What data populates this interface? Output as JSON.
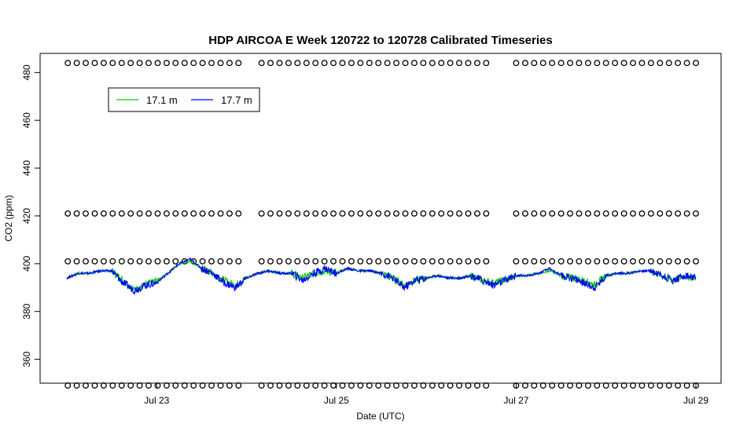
{
  "chart_data": {
    "type": "line",
    "title": "HDP AIRCOA E  Week 120722 to 120728  Calibrated Timeseries",
    "xlabel": "Date (UTC)",
    "ylabel": "CO2 (ppm)",
    "x_ticks": [
      "Jul 23",
      "Jul 25",
      "Jul 27",
      "Jul 29"
    ],
    "y_ticks": [
      360,
      380,
      400,
      420,
      440,
      460,
      480
    ],
    "xlim": [
      "2012-07-22 00:00",
      "2012-07-29 00:00"
    ],
    "ylim": [
      350,
      488
    ],
    "legend_position": "top-left",
    "grid": false,
    "series": [
      {
        "name": "17.1 m",
        "color": "#00cc00",
        "points": [
          [
            "2012-07-22 00:00",
            394
          ],
          [
            "2012-07-22 03:00",
            396
          ],
          [
            "2012-07-22 06:00",
            396
          ],
          [
            "2012-07-22 09:00",
            397
          ],
          [
            "2012-07-22 12:00",
            397
          ],
          [
            "2012-07-22 15:00",
            393
          ],
          [
            "2012-07-22 18:00",
            389
          ],
          [
            "2012-07-22 21:00",
            391
          ],
          [
            "2012-07-23 00:00",
            393
          ],
          [
            "2012-07-23 03:00",
            396
          ],
          [
            "2012-07-23 06:00",
            400
          ],
          [
            "2012-07-23 09:00",
            401
          ],
          [
            "2012-07-23 12:00",
            398
          ],
          [
            "2012-07-23 15:00",
            396
          ],
          [
            "2012-07-23 18:00",
            393
          ],
          [
            "2012-07-23 21:00",
            391
          ],
          [
            "2012-07-24 00:00",
            394
          ],
          [
            "2012-07-24 03:00",
            396
          ],
          [
            "2012-07-24 06:00",
            397
          ],
          [
            "2012-07-24 09:00",
            396
          ],
          [
            "2012-07-24 12:00",
            396
          ],
          [
            "2012-07-24 15:00",
            394
          ],
          [
            "2012-07-24 18:00",
            396
          ],
          [
            "2012-07-24 21:00",
            397
          ],
          [
            "2012-07-25 00:00",
            396
          ],
          [
            "2012-07-25 03:00",
            398
          ],
          [
            "2012-07-25 06:00",
            397
          ],
          [
            "2012-07-25 09:00",
            397
          ],
          [
            "2012-07-25 12:00",
            396
          ],
          [
            "2012-07-25 15:00",
            394
          ],
          [
            "2012-07-25 18:00",
            391
          ],
          [
            "2012-07-25 21:00",
            393
          ],
          [
            "2012-07-26 00:00",
            394
          ],
          [
            "2012-07-26 03:00",
            395
          ],
          [
            "2012-07-26 06:00",
            394
          ],
          [
            "2012-07-26 09:00",
            394
          ],
          [
            "2012-07-26 12:00",
            395
          ],
          [
            "2012-07-26 15:00",
            393
          ],
          [
            "2012-07-26 18:00",
            392
          ],
          [
            "2012-07-26 21:00",
            393
          ],
          [
            "2012-07-27 00:00",
            395
          ],
          [
            "2012-07-27 03:00",
            395
          ],
          [
            "2012-07-27 06:00",
            396
          ],
          [
            "2012-07-27 09:00",
            397
          ],
          [
            "2012-07-27 12:00",
            395
          ],
          [
            "2012-07-27 15:00",
            394
          ],
          [
            "2012-07-27 18:00",
            393
          ],
          [
            "2012-07-27 21:00",
            391
          ],
          [
            "2012-07-28 00:00",
            395
          ],
          [
            "2012-07-28 03:00",
            396
          ],
          [
            "2012-07-28 06:00",
            396
          ],
          [
            "2012-07-28 09:00",
            397
          ],
          [
            "2012-07-28 12:00",
            397
          ],
          [
            "2012-07-28 15:00",
            395
          ],
          [
            "2012-07-28 18:00",
            393
          ],
          [
            "2012-07-28 21:00",
            395
          ],
          [
            "2012-07-29 00:00",
            394
          ]
        ]
      },
      {
        "name": "17.7 m",
        "color": "#0000ff",
        "points": [
          [
            "2012-07-22 00:00",
            394
          ],
          [
            "2012-07-22 03:00",
            396
          ],
          [
            "2012-07-22 06:00",
            396
          ],
          [
            "2012-07-22 09:00",
            397
          ],
          [
            "2012-07-22 12:00",
            397
          ],
          [
            "2012-07-22 15:00",
            392
          ],
          [
            "2012-07-22 18:00",
            389
          ],
          [
            "2012-07-22 21:00",
            391
          ],
          [
            "2012-07-23 00:00",
            392
          ],
          [
            "2012-07-23 03:00",
            396
          ],
          [
            "2012-07-23 06:00",
            400
          ],
          [
            "2012-07-23 09:00",
            402
          ],
          [
            "2012-07-23 12:00",
            398
          ],
          [
            "2012-07-23 15:00",
            396
          ],
          [
            "2012-07-23 18:00",
            392
          ],
          [
            "2012-07-23 21:00",
            390
          ],
          [
            "2012-07-24 00:00",
            394
          ],
          [
            "2012-07-24 03:00",
            396
          ],
          [
            "2012-07-24 06:00",
            397
          ],
          [
            "2012-07-24 09:00",
            396
          ],
          [
            "2012-07-24 12:00",
            396
          ],
          [
            "2012-07-24 15:00",
            393
          ],
          [
            "2012-07-24 18:00",
            396
          ],
          [
            "2012-07-24 21:00",
            398
          ],
          [
            "2012-07-25 00:00",
            396
          ],
          [
            "2012-07-25 03:00",
            398
          ],
          [
            "2012-07-25 06:00",
            397
          ],
          [
            "2012-07-25 09:00",
            397
          ],
          [
            "2012-07-25 12:00",
            396
          ],
          [
            "2012-07-25 15:00",
            394
          ],
          [
            "2012-07-25 18:00",
            390
          ],
          [
            "2012-07-25 21:00",
            393
          ],
          [
            "2012-07-26 00:00",
            394
          ],
          [
            "2012-07-26 03:00",
            395
          ],
          [
            "2012-07-26 06:00",
            394
          ],
          [
            "2012-07-26 09:00",
            394
          ],
          [
            "2012-07-26 12:00",
            395
          ],
          [
            "2012-07-26 15:00",
            393
          ],
          [
            "2012-07-26 18:00",
            391
          ],
          [
            "2012-07-26 21:00",
            393
          ],
          [
            "2012-07-27 00:00",
            395
          ],
          [
            "2012-07-27 03:00",
            395
          ],
          [
            "2012-07-27 06:00",
            396
          ],
          [
            "2012-07-27 09:00",
            398
          ],
          [
            "2012-07-27 12:00",
            395
          ],
          [
            "2012-07-27 15:00",
            394
          ],
          [
            "2012-07-27 18:00",
            392
          ],
          [
            "2012-07-27 21:00",
            390
          ],
          [
            "2012-07-28 00:00",
            395
          ],
          [
            "2012-07-28 03:00",
            396
          ],
          [
            "2012-07-28 06:00",
            396
          ],
          [
            "2012-07-28 09:00",
            397
          ],
          [
            "2012-07-28 12:00",
            397
          ],
          [
            "2012-07-28 15:00",
            395
          ],
          [
            "2012-07-28 18:00",
            393
          ],
          [
            "2012-07-28 21:00",
            395
          ],
          [
            "2012-07-29 00:00",
            394
          ]
        ]
      }
    ],
    "reference_points": {
      "marker": "open-circle",
      "color": "#000000",
      "levels": [
        484,
        421,
        401,
        349
      ],
      "segments": [
        [
          "2012-07-22 00:15",
          "2012-07-23 23:30"
        ],
        [
          "2012-07-24 04:00",
          "2012-07-26 16:00"
        ],
        [
          "2012-07-27 00:00",
          "2012-07-29 00:00"
        ]
      ]
    }
  }
}
